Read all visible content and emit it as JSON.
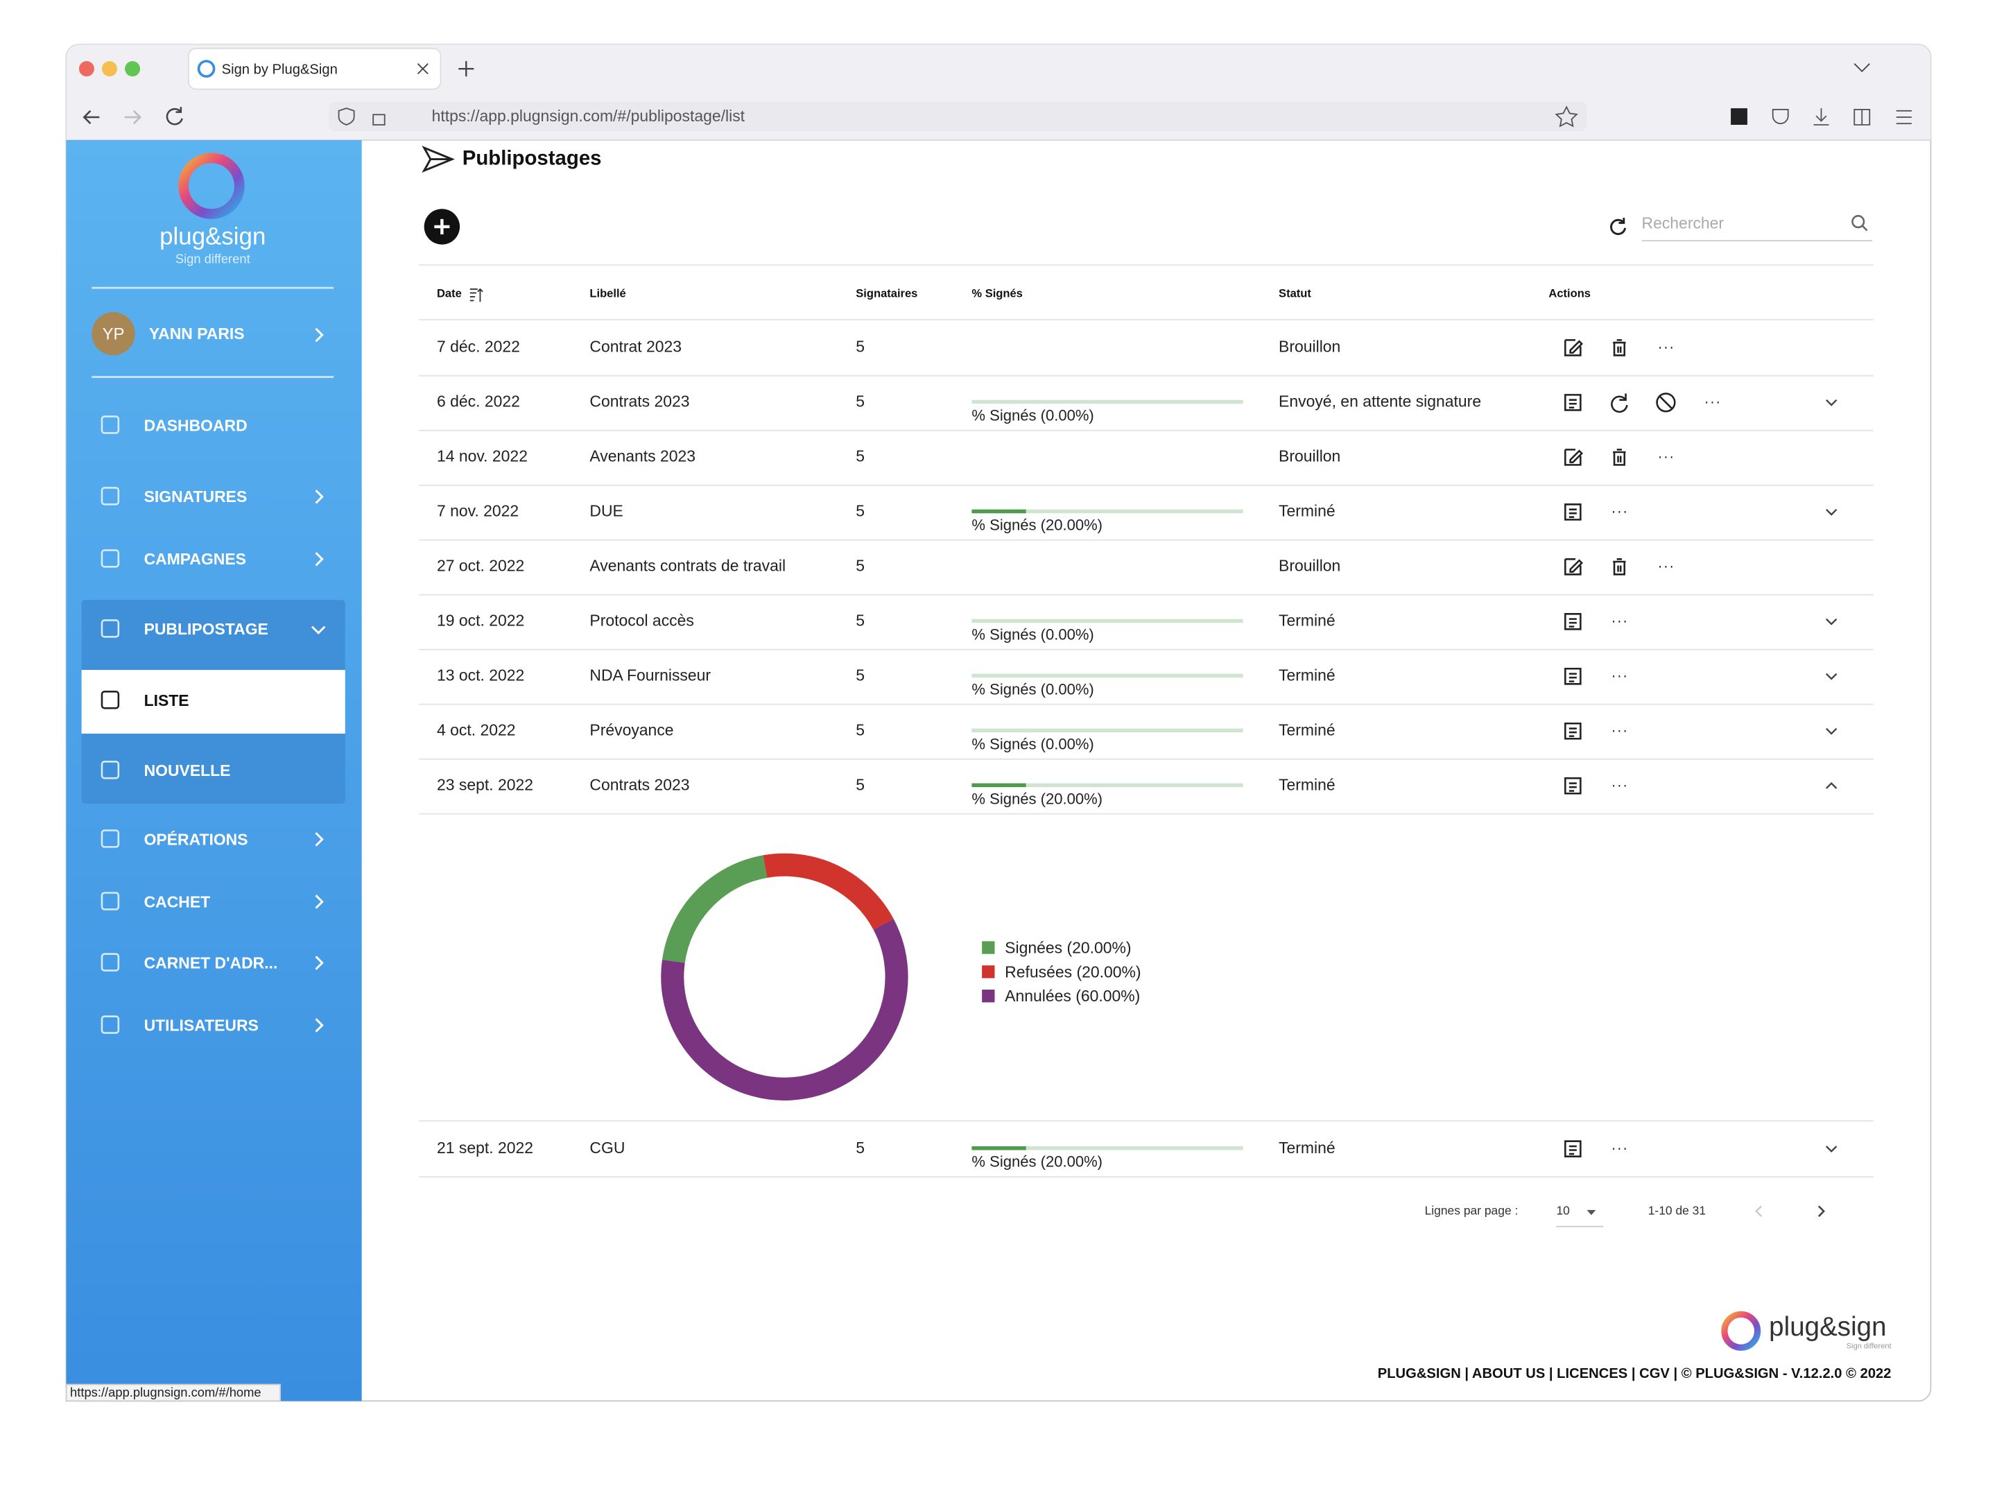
{
  "browser": {
    "tab_title": "Sign by Plug&Sign",
    "url": "https://app.plugnsign.com/#/publipostage/list",
    "status_url": "https://app.plugnsign.com/#/home"
  },
  "sidebar": {
    "logo": "plug&sign",
    "tagline": "Sign different",
    "user_initials": "YP",
    "user_name": "YANN PARIS",
    "menu": [
      "DASHBOARD",
      "SIGNATURES",
      "CAMPAGNES",
      "PUBLIPOSTAGE",
      "LISTE",
      "NOUVELLE",
      "OPÉRATIONS",
      "CACHET",
      "CARNET D'ADR...",
      "UTILISATEURS"
    ]
  },
  "page": {
    "title": "Publipostages",
    "search_placeholder": "Rechercher"
  },
  "table": {
    "headers": [
      "Date",
      "Libellé",
      "Signataires",
      "% Signés",
      "Statut",
      "Actions"
    ],
    "rows": [
      {
        "date": "7 déc. 2022",
        "label": "Contrat 2023",
        "signers": 5,
        "status": "Brouillon"
      },
      {
        "date": "6 déc. 2022",
        "label": "Contrats 2023",
        "signers": 5,
        "progress": 0,
        "progress_label": "% Signés (0.00%)",
        "status": "Envoyé, en attente signature"
      },
      {
        "date": "14 nov. 2022",
        "label": "Avenants 2023",
        "signers": 5,
        "status": "Brouillon"
      },
      {
        "date": "7 nov. 2022",
        "label": "DUE",
        "signers": 5,
        "progress": 20,
        "progress_label": "% Signés (20.00%)",
        "status": "Terminé"
      },
      {
        "date": "27 oct. 2022",
        "label": "Avenants contrats de travail",
        "signers": 5,
        "status": "Brouillon"
      },
      {
        "date": "19 oct. 2022",
        "label": "Protocol accès",
        "signers": 5,
        "progress": 0,
        "progress_label": "% Signés (0.00%)",
        "status": "Terminé"
      },
      {
        "date": "13 oct. 2022",
        "label": "NDA Fournisseur",
        "signers": 5,
        "progress": 0,
        "progress_label": "% Signés (0.00%)",
        "status": "Terminé"
      },
      {
        "date": "4 oct. 2022",
        "label": "Prévoyance",
        "signers": 5,
        "progress": 0,
        "progress_label": "% Signés (0.00%)",
        "status": "Terminé"
      },
      {
        "date": "23 sept. 2022",
        "label": "Contrats 2023",
        "signers": 5,
        "progress": 20,
        "progress_label": "% Signés (20.00%)",
        "status": "Terminé"
      },
      {
        "date": "21 sept. 2022",
        "label": "CGU",
        "signers": 5,
        "progress": 20,
        "progress_label": "% Signés (20.00%)",
        "status": "Terminé"
      }
    ]
  },
  "donut": {
    "type": "pie",
    "segments": [
      {
        "label": "Signées (20.00%)",
        "value": 20,
        "color": "#5a9e55"
      },
      {
        "label": "Refusées (20.00%)",
        "value": 20,
        "color": "#d0342c"
      },
      {
        "label": "Annulées (60.00%)",
        "value": 60,
        "color": "#7b3580"
      }
    ]
  },
  "pagination": {
    "rows_per_page_label": "Lignes par page :",
    "rows_per_page": "10",
    "range": "1-10 de 31"
  },
  "footer": {
    "logo": "plug&sign",
    "tagline": "Sign different",
    "links": "PLUG&SIGN | ABOUT US | LICENCES | CGV | © PLUG&SIGN  - V.12.2.0 © 2022"
  }
}
